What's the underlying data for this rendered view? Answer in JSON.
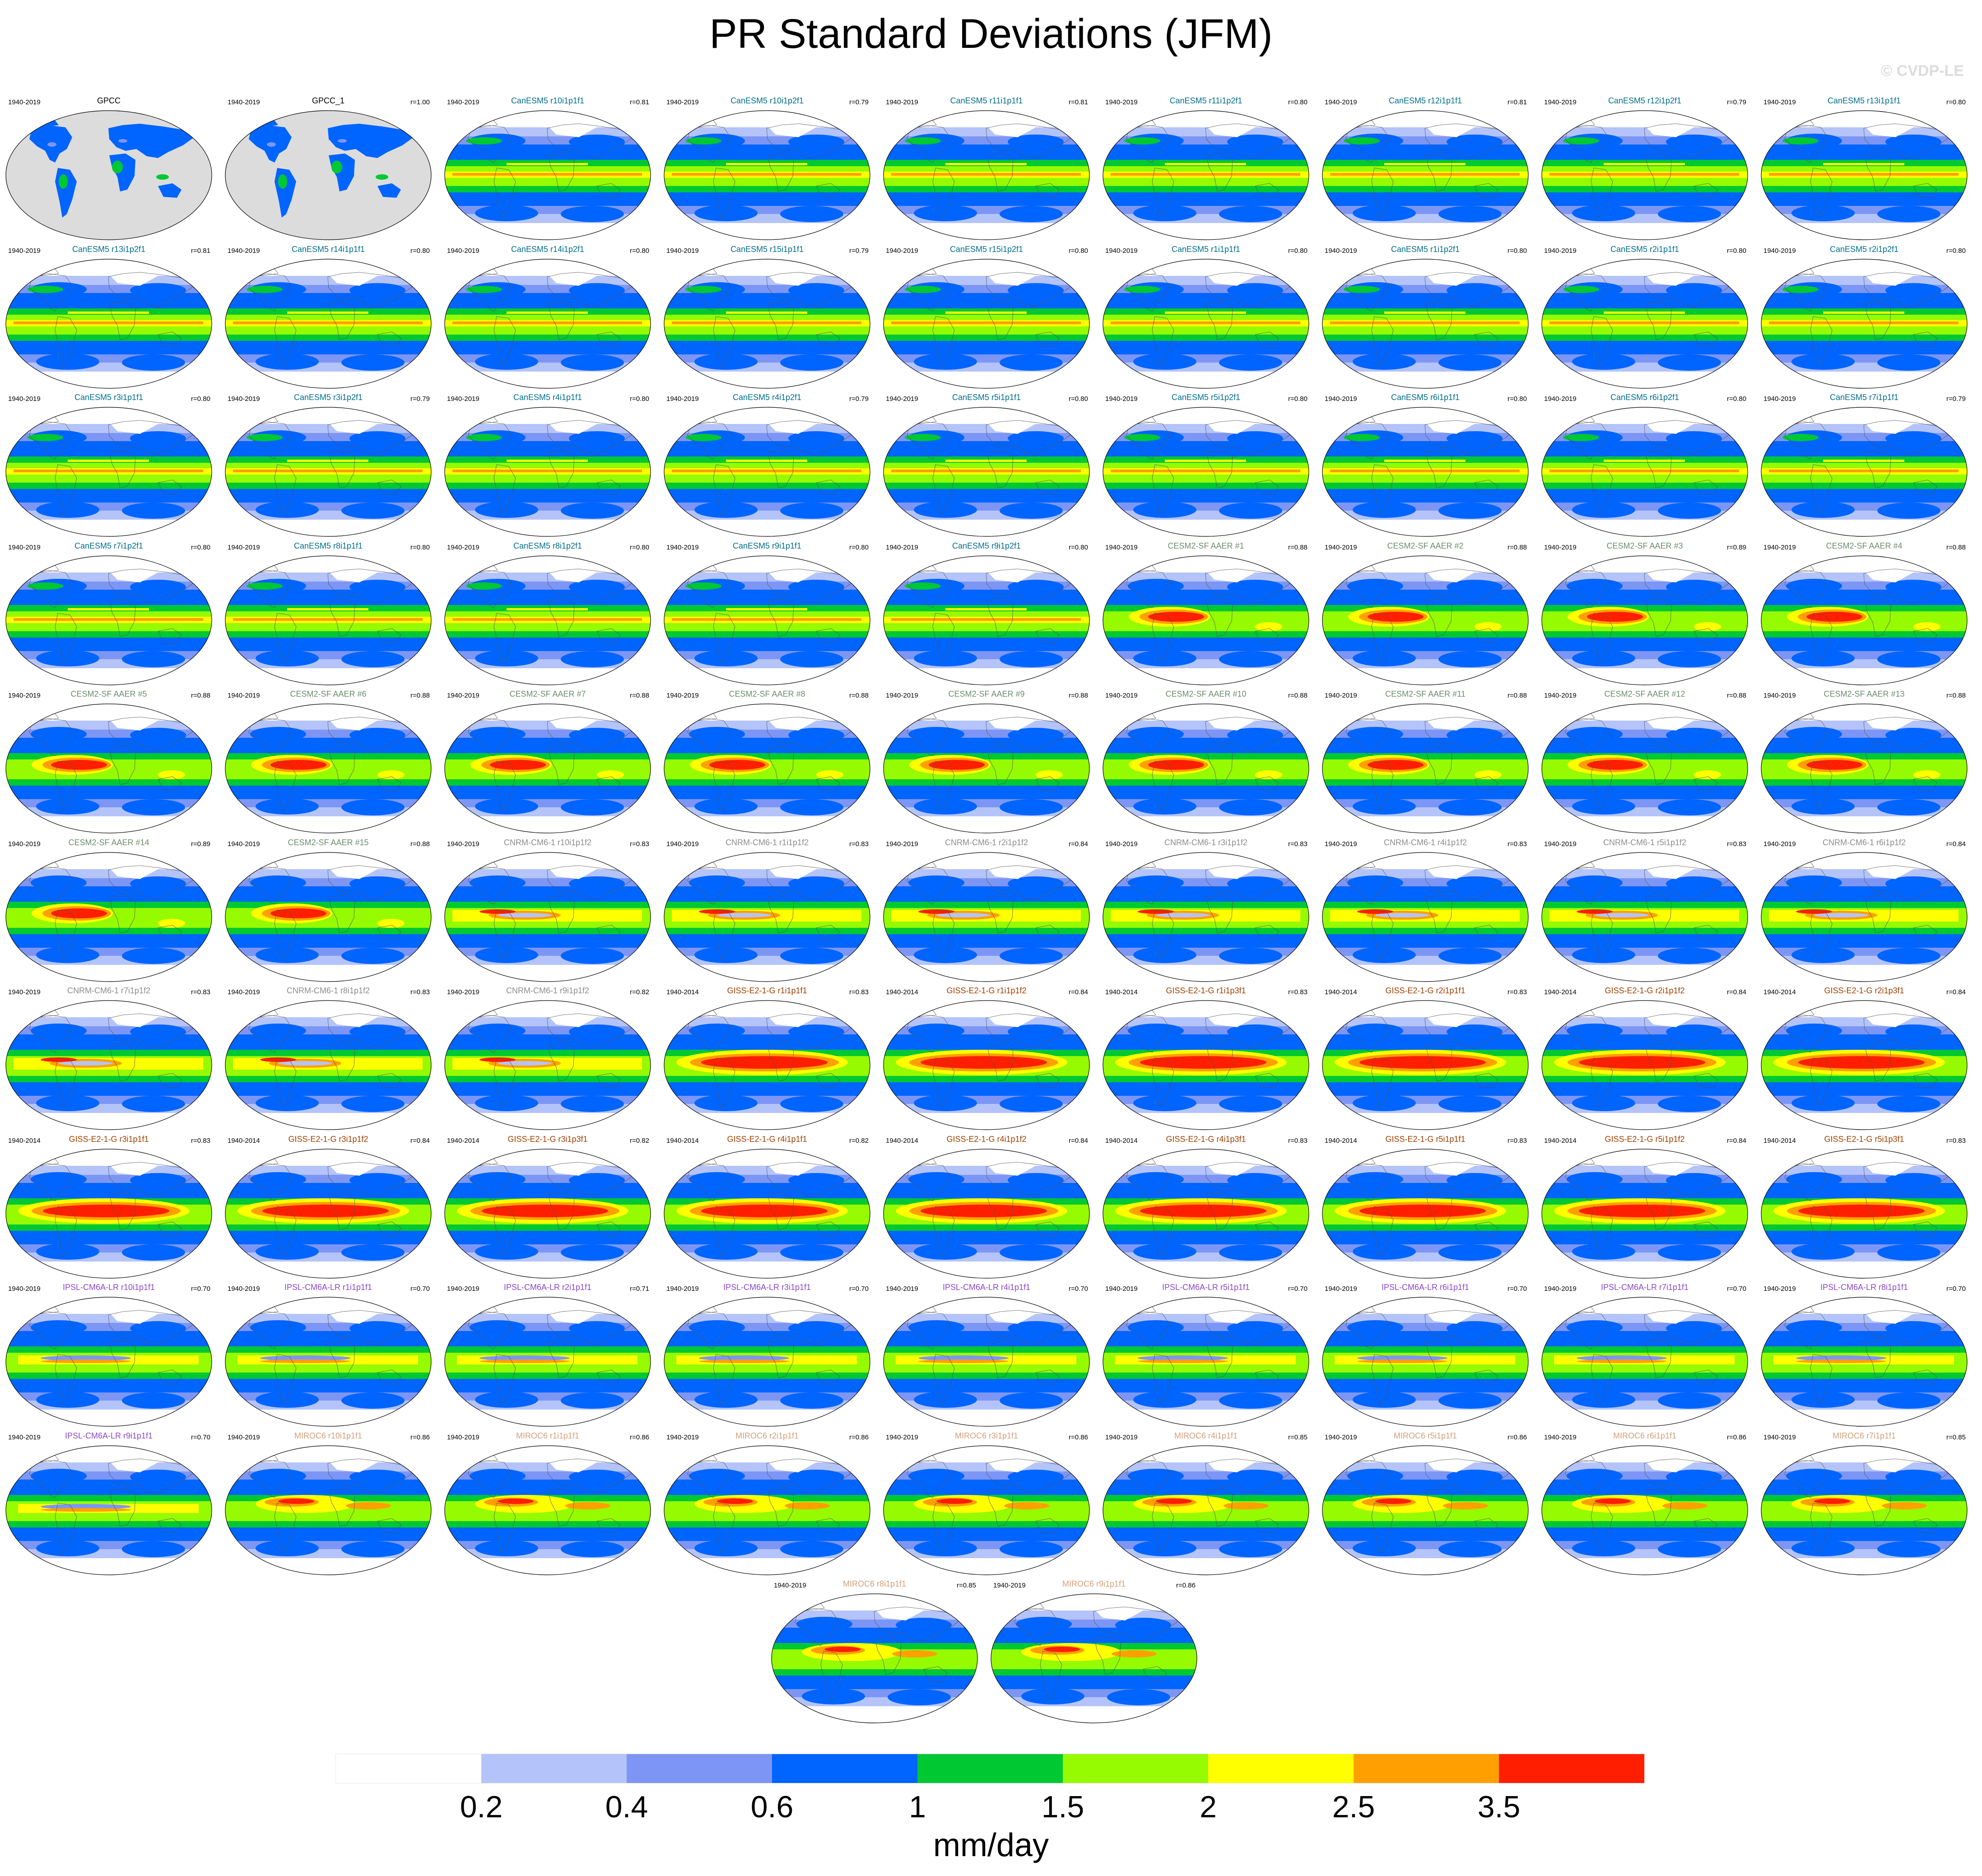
{
  "title": "PR Standard Deviations (JFM)",
  "watermark": "© CVDP-LE",
  "colorbar": {
    "units": "mm/day",
    "tick_labels": [
      "0.2",
      "0.4",
      "0.6",
      "1",
      "1.5",
      "2",
      "2.5",
      "3.5"
    ],
    "colors": [
      "#ffffff",
      "#b4c4fa",
      "#7d96f5",
      "#0064ff",
      "#00c832",
      "#96fa00",
      "#ffff00",
      "#ffa000",
      "#ff1e00"
    ]
  },
  "family_colors": {
    "GPCC": "#000000",
    "CanESM5": "#006e8c",
    "CESM2-SF": "#6e8c6e",
    "CNRM-CM6-1": "#8c8c8c",
    "GISS-E2-1-G": "#a04000",
    "IPSL-CM6A-LR": "#8c46c8",
    "MIROC6": "#d2a07a"
  },
  "panels": [
    {
      "name": "GPCC",
      "years": "1940-2019",
      "r": "",
      "family": "GPCC",
      "pattern": "obs"
    },
    {
      "name": "GPCC_1",
      "years": "1940-2019",
      "r": "r=1.00",
      "family": "GPCC",
      "pattern": "obs"
    },
    {
      "name": "CanESM5 r10i1p1f1",
      "years": "1940-2019",
      "r": "r=0.81",
      "family": "CanESM5",
      "pattern": "canesm"
    },
    {
      "name": "CanESM5 r10i1p2f1",
      "years": "1940-2019",
      "r": "r=0.79",
      "family": "CanESM5",
      "pattern": "canesm"
    },
    {
      "name": "CanESM5 r11i1p1f1",
      "years": "1940-2019",
      "r": "r=0.81",
      "family": "CanESM5",
      "pattern": "canesm"
    },
    {
      "name": "CanESM5 r11i1p2f1",
      "years": "1940-2019",
      "r": "r=0.80",
      "family": "CanESM5",
      "pattern": "canesm"
    },
    {
      "name": "CanESM5 r12i1p1f1",
      "years": "1940-2019",
      "r": "r=0.81",
      "family": "CanESM5",
      "pattern": "canesm"
    },
    {
      "name": "CanESM5 r12i1p2f1",
      "years": "1940-2019",
      "r": "r=0.79",
      "family": "CanESM5",
      "pattern": "canesm"
    },
    {
      "name": "CanESM5 r13i1p1f1",
      "years": "1940-2019",
      "r": "r=0.80",
      "family": "CanESM5",
      "pattern": "canesm"
    },
    {
      "name": "CanESM5 r13i1p2f1",
      "years": "1940-2019",
      "r": "r=0.81",
      "family": "CanESM5",
      "pattern": "canesm"
    },
    {
      "name": "CanESM5 r14i1p1f1",
      "years": "1940-2019",
      "r": "r=0.80",
      "family": "CanESM5",
      "pattern": "canesm"
    },
    {
      "name": "CanESM5 r14i1p2f1",
      "years": "1940-2019",
      "r": "r=0.80",
      "family": "CanESM5",
      "pattern": "canesm"
    },
    {
      "name": "CanESM5 r15i1p1f1",
      "years": "1940-2019",
      "r": "r=0.79",
      "family": "CanESM5",
      "pattern": "canesm"
    },
    {
      "name": "CanESM5 r15i1p2f1",
      "years": "1940-2019",
      "r": "r=0.80",
      "family": "CanESM5",
      "pattern": "canesm"
    },
    {
      "name": "CanESM5 r1i1p1f1",
      "years": "1940-2019",
      "r": "r=0.80",
      "family": "CanESM5",
      "pattern": "canesm"
    },
    {
      "name": "CanESM5 r1i1p2f1",
      "years": "1940-2019",
      "r": "r=0.80",
      "family": "CanESM5",
      "pattern": "canesm"
    },
    {
      "name": "CanESM5 r2i1p1f1",
      "years": "1940-2019",
      "r": "r=0.80",
      "family": "CanESM5",
      "pattern": "canesm"
    },
    {
      "name": "CanESM5 r2i1p2f1",
      "years": "1940-2019",
      "r": "r=0.80",
      "family": "CanESM5",
      "pattern": "canesm"
    },
    {
      "name": "CanESM5 r3i1p1f1",
      "years": "1940-2019",
      "r": "r=0.80",
      "family": "CanESM5",
      "pattern": "canesm"
    },
    {
      "name": "CanESM5 r3i1p2f1",
      "years": "1940-2019",
      "r": "r=0.79",
      "family": "CanESM5",
      "pattern": "canesm"
    },
    {
      "name": "CanESM5 r4i1p1f1",
      "years": "1940-2019",
      "r": "r=0.80",
      "family": "CanESM5",
      "pattern": "canesm"
    },
    {
      "name": "CanESM5 r4i1p2f1",
      "years": "1940-2019",
      "r": "r=0.79",
      "family": "CanESM5",
      "pattern": "canesm"
    },
    {
      "name": "CanESM5 r5i1p1f1",
      "years": "1940-2019",
      "r": "r=0.80",
      "family": "CanESM5",
      "pattern": "canesm"
    },
    {
      "name": "CanESM5 r5i1p2f1",
      "years": "1940-2019",
      "r": "r=0.80",
      "family": "CanESM5",
      "pattern": "canesm"
    },
    {
      "name": "CanESM5 r6i1p1f1",
      "years": "1940-2019",
      "r": "r=0.80",
      "family": "CanESM5",
      "pattern": "canesm"
    },
    {
      "name": "CanESM5 r6i1p2f1",
      "years": "1940-2019",
      "r": "r=0.80",
      "family": "CanESM5",
      "pattern": "canesm"
    },
    {
      "name": "CanESM5 r7i1p1f1",
      "years": "1940-2019",
      "r": "r=0.79",
      "family": "CanESM5",
      "pattern": "canesm"
    },
    {
      "name": "CanESM5 r7i1p2f1",
      "years": "1940-2019",
      "r": "r=0.80",
      "family": "CanESM5",
      "pattern": "canesm"
    },
    {
      "name": "CanESM5 r8i1p1f1",
      "years": "1940-2019",
      "r": "r=0.80",
      "family": "CanESM5",
      "pattern": "canesm"
    },
    {
      "name": "CanESM5 r8i1p2f1",
      "years": "1940-2019",
      "r": "r=0.80",
      "family": "CanESM5",
      "pattern": "canesm"
    },
    {
      "name": "CanESM5 r9i1p1f1",
      "years": "1940-2019",
      "r": "r=0.80",
      "family": "CanESM5",
      "pattern": "canesm"
    },
    {
      "name": "CanESM5 r9i1p2f1",
      "years": "1940-2019",
      "r": "r=0.80",
      "family": "CanESM5",
      "pattern": "canesm"
    },
    {
      "name": "CESM2-SF AAER #1",
      "years": "1940-2019",
      "r": "r=0.88",
      "family": "CESM2-SF",
      "pattern": "cesm"
    },
    {
      "name": "CESM2-SF AAER #2",
      "years": "1940-2019",
      "r": "r=0.88",
      "family": "CESM2-SF",
      "pattern": "cesm"
    },
    {
      "name": "CESM2-SF AAER #3",
      "years": "1940-2019",
      "r": "r=0.89",
      "family": "CESM2-SF",
      "pattern": "cesm"
    },
    {
      "name": "CESM2-SF AAER #4",
      "years": "1940-2019",
      "r": "r=0.88",
      "family": "CESM2-SF",
      "pattern": "cesm"
    },
    {
      "name": "CESM2-SF AAER #5",
      "years": "1940-2019",
      "r": "r=0.88",
      "family": "CESM2-SF",
      "pattern": "cesm"
    },
    {
      "name": "CESM2-SF AAER #6",
      "years": "1940-2019",
      "r": "r=0.88",
      "family": "CESM2-SF",
      "pattern": "cesm"
    },
    {
      "name": "CESM2-SF AAER #7",
      "years": "1940-2019",
      "r": "r=0.88",
      "family": "CESM2-SF",
      "pattern": "cesm"
    },
    {
      "name": "CESM2-SF AAER #8",
      "years": "1940-2019",
      "r": "r=0.88",
      "family": "CESM2-SF",
      "pattern": "cesm"
    },
    {
      "name": "CESM2-SF AAER #9",
      "years": "1940-2019",
      "r": "r=0.88",
      "family": "CESM2-SF",
      "pattern": "cesm"
    },
    {
      "name": "CESM2-SF AAER #10",
      "years": "1940-2019",
      "r": "r=0.88",
      "family": "CESM2-SF",
      "pattern": "cesm"
    },
    {
      "name": "CESM2-SF AAER #11",
      "years": "1940-2019",
      "r": "r=0.88",
      "family": "CESM2-SF",
      "pattern": "cesm"
    },
    {
      "name": "CESM2-SF AAER #12",
      "years": "1940-2019",
      "r": "r=0.88",
      "family": "CESM2-SF",
      "pattern": "cesm"
    },
    {
      "name": "CESM2-SF AAER #13",
      "years": "1940-2019",
      "r": "r=0.88",
      "family": "CESM2-SF",
      "pattern": "cesm"
    },
    {
      "name": "CESM2-SF AAER #14",
      "years": "1940-2019",
      "r": "r=0.89",
      "family": "CESM2-SF",
      "pattern": "cesm"
    },
    {
      "name": "CESM2-SF AAER #15",
      "years": "1940-2019",
      "r": "r=0.88",
      "family": "CESM2-SF",
      "pattern": "cesm"
    },
    {
      "name": "CNRM-CM6-1 r10i1p1f2",
      "years": "1940-2019",
      "r": "r=0.83",
      "family": "CNRM-CM6-1",
      "pattern": "cnrm"
    },
    {
      "name": "CNRM-CM6-1 r1i1p1f2",
      "years": "1940-2019",
      "r": "r=0.83",
      "family": "CNRM-CM6-1",
      "pattern": "cnrm"
    },
    {
      "name": "CNRM-CM6-1 r2i1p1f2",
      "years": "1940-2019",
      "r": "r=0.84",
      "family": "CNRM-CM6-1",
      "pattern": "cnrm"
    },
    {
      "name": "CNRM-CM6-1 r3i1p1f2",
      "years": "1940-2019",
      "r": "r=0.83",
      "family": "CNRM-CM6-1",
      "pattern": "cnrm"
    },
    {
      "name": "CNRM-CM6-1 r4i1p1f2",
      "years": "1940-2019",
      "r": "r=0.83",
      "family": "CNRM-CM6-1",
      "pattern": "cnrm"
    },
    {
      "name": "CNRM-CM6-1 r5i1p1f2",
      "years": "1940-2019",
      "r": "r=0.83",
      "family": "CNRM-CM6-1",
      "pattern": "cnrm"
    },
    {
      "name": "CNRM-CM6-1 r6i1p1f2",
      "years": "1940-2019",
      "r": "r=0.84",
      "family": "CNRM-CM6-1",
      "pattern": "cnrm"
    },
    {
      "name": "CNRM-CM6-1 r7i1p1f2",
      "years": "1940-2019",
      "r": "r=0.83",
      "family": "CNRM-CM6-1",
      "pattern": "cnrm"
    },
    {
      "name": "CNRM-CM6-1 r8i1p1f2",
      "years": "1940-2019",
      "r": "r=0.83",
      "family": "CNRM-CM6-1",
      "pattern": "cnrm"
    },
    {
      "name": "CNRM-CM6-1 r9i1p1f2",
      "years": "1940-2019",
      "r": "r=0.82",
      "family": "CNRM-CM6-1",
      "pattern": "cnrm"
    },
    {
      "name": "GISS-E2-1-G r1i1p1f1",
      "years": "1940-2014",
      "r": "r=0.83",
      "family": "GISS-E2-1-G",
      "pattern": "giss"
    },
    {
      "name": "GISS-E2-1-G r1i1p1f2",
      "years": "1940-2014",
      "r": "r=0.84",
      "family": "GISS-E2-1-G",
      "pattern": "giss"
    },
    {
      "name": "GISS-E2-1-G r1i1p3f1",
      "years": "1940-2014",
      "r": "r=0.83",
      "family": "GISS-E2-1-G",
      "pattern": "giss"
    },
    {
      "name": "GISS-E2-1-G r2i1p1f1",
      "years": "1940-2014",
      "r": "r=0.83",
      "family": "GISS-E2-1-G",
      "pattern": "giss"
    },
    {
      "name": "GISS-E2-1-G r2i1p1f2",
      "years": "1940-2014",
      "r": "r=0.84",
      "family": "GISS-E2-1-G",
      "pattern": "giss"
    },
    {
      "name": "GISS-E2-1-G r2i1p3f1",
      "years": "1940-2014",
      "r": "r=0.84",
      "family": "GISS-E2-1-G",
      "pattern": "giss"
    },
    {
      "name": "GISS-E2-1-G r3i1p1f1",
      "years": "1940-2014",
      "r": "r=0.83",
      "family": "GISS-E2-1-G",
      "pattern": "giss"
    },
    {
      "name": "GISS-E2-1-G r3i1p1f2",
      "years": "1940-2014",
      "r": "r=0.84",
      "family": "GISS-E2-1-G",
      "pattern": "giss"
    },
    {
      "name": "GISS-E2-1-G r3i1p3f1",
      "years": "1940-2014",
      "r": "r=0.82",
      "family": "GISS-E2-1-G",
      "pattern": "giss"
    },
    {
      "name": "GISS-E2-1-G r4i1p1f1",
      "years": "1940-2014",
      "r": "r=0.82",
      "family": "GISS-E2-1-G",
      "pattern": "giss"
    },
    {
      "name": "GISS-E2-1-G r4i1p1f2",
      "years": "1940-2014",
      "r": "r=0.84",
      "family": "GISS-E2-1-G",
      "pattern": "giss"
    },
    {
      "name": "GISS-E2-1-G r4i1p3f1",
      "years": "1940-2014",
      "r": "r=0.83",
      "family": "GISS-E2-1-G",
      "pattern": "giss"
    },
    {
      "name": "GISS-E2-1-G r5i1p1f1",
      "years": "1940-2014",
      "r": "r=0.83",
      "family": "GISS-E2-1-G",
      "pattern": "giss"
    },
    {
      "name": "GISS-E2-1-G r5i1p1f2",
      "years": "1940-2014",
      "r": "r=0.84",
      "family": "GISS-E2-1-G",
      "pattern": "giss"
    },
    {
      "name": "GISS-E2-1-G r5i1p3f1",
      "years": "1940-2014",
      "r": "r=0.83",
      "family": "GISS-E2-1-G",
      "pattern": "giss"
    },
    {
      "name": "IPSL-CM6A-LR r10i1p1f1",
      "years": "1940-2019",
      "r": "r=0.70",
      "family": "IPSL-CM6A-LR",
      "pattern": "ipsl"
    },
    {
      "name": "IPSL-CM6A-LR r1i1p1f1",
      "years": "1940-2019",
      "r": "r=0.70",
      "family": "IPSL-CM6A-LR",
      "pattern": "ipsl"
    },
    {
      "name": "IPSL-CM6A-LR r2i1p1f1",
      "years": "1940-2019",
      "r": "r=0.71",
      "family": "IPSL-CM6A-LR",
      "pattern": "ipsl"
    },
    {
      "name": "IPSL-CM6A-LR r3i1p1f1",
      "years": "1940-2019",
      "r": "r=0.70",
      "family": "IPSL-CM6A-LR",
      "pattern": "ipsl"
    },
    {
      "name": "IPSL-CM6A-LR r4i1p1f1",
      "years": "1940-2019",
      "r": "r=0.70",
      "family": "IPSL-CM6A-LR",
      "pattern": "ipsl"
    },
    {
      "name": "IPSL-CM6A-LR r5i1p1f1",
      "years": "1940-2019",
      "r": "r=0.70",
      "family": "IPSL-CM6A-LR",
      "pattern": "ipsl"
    },
    {
      "name": "IPSL-CM6A-LR r6i1p1f1",
      "years": "1940-2019",
      "r": "r=0.70",
      "family": "IPSL-CM6A-LR",
      "pattern": "ipsl"
    },
    {
      "name": "IPSL-CM6A-LR r7i1p1f1",
      "years": "1940-2019",
      "r": "r=0.70",
      "family": "IPSL-CM6A-LR",
      "pattern": "ipsl"
    },
    {
      "name": "IPSL-CM6A-LR r8i1p1f1",
      "years": "1940-2019",
      "r": "r=0.70",
      "family": "IPSL-CM6A-LR",
      "pattern": "ipsl"
    },
    {
      "name": "IPSL-CM6A-LR r9i1p1f1",
      "years": "1940-2019",
      "r": "r=0.70",
      "family": "IPSL-CM6A-LR",
      "pattern": "ipsl"
    },
    {
      "name": "MIROC6 r10i1p1f1",
      "years": "1940-2019",
      "r": "r=0.86",
      "family": "MIROC6",
      "pattern": "miroc"
    },
    {
      "name": "MIROC6 r1i1p1f1",
      "years": "1940-2019",
      "r": "r=0.86",
      "family": "MIROC6",
      "pattern": "miroc"
    },
    {
      "name": "MIROC6 r2i1p1f1",
      "years": "1940-2019",
      "r": "r=0.86",
      "family": "MIROC6",
      "pattern": "miroc"
    },
    {
      "name": "MIROC6 r3i1p1f1",
      "years": "1940-2019",
      "r": "r=0.86",
      "family": "MIROC6",
      "pattern": "miroc"
    },
    {
      "name": "MIROC6 r4i1p1f1",
      "years": "1940-2019",
      "r": "r=0.85",
      "family": "MIROC6",
      "pattern": "miroc"
    },
    {
      "name": "MIROC6 r5i1p1f1",
      "years": "1940-2019",
      "r": "r=0.86",
      "family": "MIROC6",
      "pattern": "miroc"
    },
    {
      "name": "MIROC6 r6i1p1f1",
      "years": "1940-2019",
      "r": "r=0.86",
      "family": "MIROC6",
      "pattern": "miroc"
    },
    {
      "name": "MIROC6 r7i1p1f1",
      "years": "1940-2019",
      "r": "r=0.85",
      "family": "MIROC6",
      "pattern": "miroc"
    },
    {
      "name": "MIROC6 r8i1p1f1",
      "years": "1940-2019",
      "r": "r=0.85",
      "family": "MIROC6",
      "pattern": "miroc"
    },
    {
      "name": "MIROC6 r9i1p1f1",
      "years": "1940-2019",
      "r": "r=0.86",
      "family": "MIROC6",
      "pattern": "miroc"
    }
  ]
}
